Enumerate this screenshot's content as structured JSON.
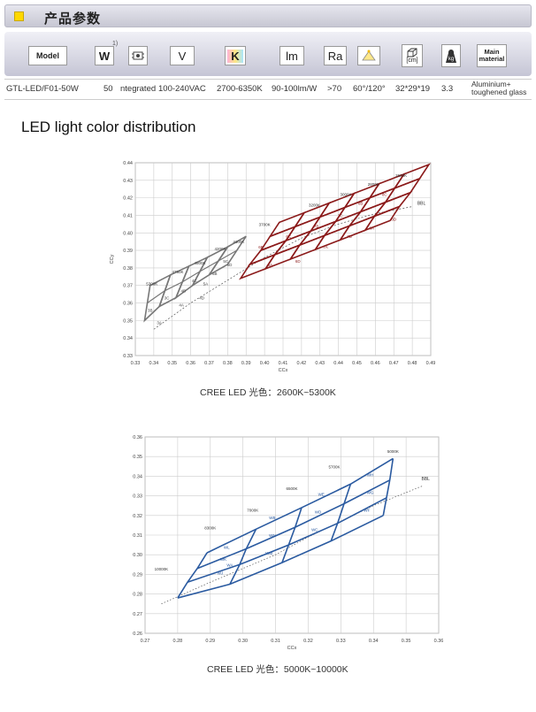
{
  "header": {
    "title": "产品参数"
  },
  "spec_icons": {
    "model_label": "Model",
    "watt_label": "W",
    "watt_sup": "1)",
    "chip_icon": "led-chip-icon",
    "volt_label": "V",
    "kelvin_label": "K",
    "kelvin_color": "#ffd84a",
    "lumen_label": "lm",
    "ra_label": "Ra",
    "angle_icon": "beam-angle-icon",
    "size_icon": "dimension-box-icon",
    "size_unit": "[cm]",
    "weight_icon": "weight-icon",
    "weight_unit": "kg",
    "material_label": "Main material"
  },
  "spec_row": {
    "model": "GTL-LED/F01-50W",
    "watt": "50",
    "chip": "ntegrated",
    "voltage": "100-240VAC",
    "cct": "2700-6350K",
    "efficacy": "90-100lm/W",
    "ra": ">70",
    "angle": "60°/120°",
    "size": "32*29*19",
    "weight": "3.3",
    "material_line1": "Aluminium+",
    "material_line2": "toughened glass"
  },
  "section_title": "LED light color distribution",
  "chart_data": [
    {
      "type": "scatter",
      "xlabel": "CCx",
      "ylabel": "CCy",
      "xlim": [
        0.33,
        0.49
      ],
      "ylim": [
        0.33,
        0.44
      ],
      "x_ticks": [
        "0.33",
        "0.34",
        "0.35",
        "0.36",
        "0.37",
        "0.38",
        "0.39",
        "0.40",
        "0.41",
        "0.42",
        "0.43",
        "0.44",
        "0.45",
        "0.46",
        "0.47",
        "0.48",
        "0.49"
      ],
      "y_ticks": [
        "0.44",
        "0.43",
        "0.42",
        "0.41",
        "0.40",
        "0.39",
        "0.38",
        "0.37",
        "0.36",
        "0.35",
        "0.34",
        "0.33"
      ],
      "cct_labels": [
        "5300K",
        "4750K",
        "4500K",
        "4200K",
        "4100K",
        "3700K",
        "3200K",
        "3000K",
        "2800K",
        "2600K"
      ],
      "bbl_label": "BBL",
      "cool_bins": [
        "3B",
        "3C",
        "3A",
        "4B",
        "4C",
        "4A",
        "4D",
        "5B",
        "5C",
        "5A",
        "5D"
      ],
      "warm_bins": [
        "6B",
        "6C",
        "6A",
        "6D",
        "7B",
        "7C",
        "7A",
        "7D",
        "8B",
        "8C",
        "8A",
        "8D"
      ],
      "cool_color": "#777777",
      "warm_color": "#8b1a1a",
      "caption": "CREE LED 光色：2600K~5300K"
    },
    {
      "type": "scatter",
      "xlabel": "CCx",
      "ylabel": "",
      "xlim": [
        0.27,
        0.36
      ],
      "ylim": [
        0.26,
        0.36
      ],
      "x_ticks": [
        "0.27",
        "0.28",
        "0.29",
        "0.30",
        "0.31",
        "0.32",
        "0.33",
        "0.34",
        "0.35",
        "0.36"
      ],
      "y_ticks": [
        "0.36",
        "0.35",
        "0.34",
        "0.33",
        "0.32",
        "0.31",
        "0.30",
        "0.29",
        "0.28",
        "0.27",
        "0.26"
      ],
      "cct_labels": [
        "5000K",
        "5700K",
        "6500K",
        "7000K",
        "8300K",
        "10000K"
      ],
      "bbl_label": "BBL",
      "bins": [
        "WH",
        "WG",
        "WF",
        "WE",
        "WD",
        "WC",
        "WB",
        "WA",
        "WN",
        "WM",
        "WL",
        "WK",
        "WJ"
      ],
      "line_color": "#2a5aa0",
      "caption": "CREE LED 光色：5000K~10000K"
    }
  ]
}
